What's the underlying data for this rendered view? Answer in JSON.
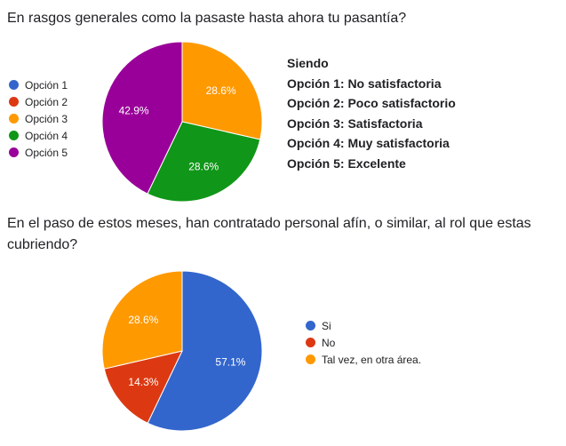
{
  "chart_data": [
    {
      "type": "pie",
      "title": "En rasgos generales como la pasaste hasta ahora tu pasantía?",
      "categories": [
        "Opción 1",
        "Opción 2",
        "Opción 3",
        "Opción 4",
        "Opción 5"
      ],
      "values": [
        0,
        0,
        28.6,
        28.6,
        42.9
      ],
      "value_labels": [
        "",
        "",
        "28.6%",
        "28.6%",
        "42.9%"
      ],
      "colors": [
        "#3366cc",
        "#dc3912",
        "#ff9900",
        "#109618",
        "#990099"
      ],
      "legend_position": "left",
      "note": [
        "Siendo",
        "Opción 1: No satisfactoria",
        "Opción 2: Poco satisfactorio",
        "Opción 3: Satisfactoria",
        "Opción 4: Muy satisfactoria",
        "Opción 5: Excelente"
      ]
    },
    {
      "type": "pie",
      "title": "En el paso de estos meses, han contratado personal afín, o similar, al rol que estas cubriendo?",
      "categories": [
        "Si",
        "No",
        "Tal vez, en otra área."
      ],
      "values": [
        57.1,
        14.3,
        28.6
      ],
      "value_labels": [
        "57.1%",
        "14.3%",
        "28.6%"
      ],
      "colors": [
        "#3366cc",
        "#dc3912",
        "#ff9900"
      ],
      "legend_position": "right"
    }
  ]
}
